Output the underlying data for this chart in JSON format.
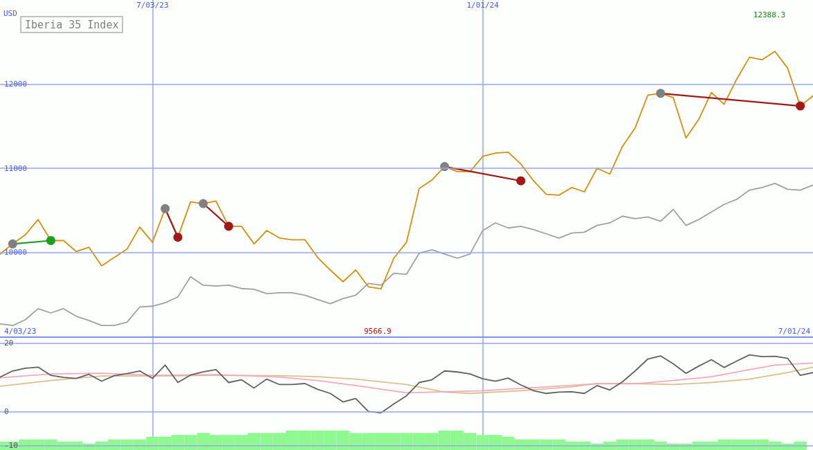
{
  "chart_data": [
    {
      "type": "line",
      "title": "Iberia 35 Index",
      "ylabel": "USD",
      "x": [
        "2023-04-10",
        "2023-04-17",
        "2023-04-24",
        "2023-05-01",
        "2023-05-08",
        "2023-05-15",
        "2023-05-22",
        "2023-05-29",
        "2023-06-05",
        "2023-06-12",
        "2023-06-19",
        "2023-06-26",
        "2023-07-03",
        "2023-07-10",
        "2023-07-17",
        "2023-07-24",
        "2023-07-31",
        "2023-08-07",
        "2023-08-14",
        "2023-08-21",
        "2023-08-28",
        "2023-09-04",
        "2023-09-11",
        "2023-09-18",
        "2023-09-25",
        "2023-10-02",
        "2023-10-09",
        "2023-10-16",
        "2023-10-23",
        "2023-10-30",
        "2023-11-06",
        "2023-11-13",
        "2023-11-20",
        "2023-11-27",
        "2023-12-04",
        "2023-12-11",
        "2023-12-18",
        "2023-12-25",
        "2024-01-01",
        "2024-01-08",
        "2024-01-15",
        "2024-01-22",
        "2024-01-29",
        "2024-02-05",
        "2024-02-12",
        "2024-02-19",
        "2024-02-26",
        "2024-03-04",
        "2024-03-11",
        "2024-03-18",
        "2024-03-25",
        "2024-04-01",
        "2024-04-08",
        "2024-04-15",
        "2024-04-22",
        "2024-04-29",
        "2024-05-06",
        "2024-05-13",
        "2024-05-20",
        "2024-05-27",
        "2024-06-03",
        "2024-06-10",
        "2024-06-17",
        "2024-06-24",
        "2024-07-01"
      ],
      "series": [
        {
          "color": "#d4900a",
          "values": [
            9980,
            10100,
            10210,
            10390,
            10140,
            10140,
            10010,
            10060,
            9840,
            9940,
            10040,
            10300,
            10120,
            10520,
            10180,
            10600,
            10580,
            10610,
            10310,
            10310,
            10100,
            10260,
            10170,
            10150,
            10150,
            9940,
            9790,
            9650,
            9790,
            9590,
            9566.9,
            9930,
            10120,
            10760,
            10860,
            11020,
            10960,
            10960,
            11140,
            11180,
            11190,
            11050,
            10850,
            10690,
            10680,
            10770,
            10720,
            11000,
            10930,
            11260,
            11480,
            11870,
            11890,
            11840,
            11360,
            11580,
            11900,
            11760,
            12060,
            12320,
            12290,
            12388.3,
            12190,
            11740,
            11860
          ]
        },
        {
          "color": "#a0a0a0",
          "values": [
            9150,
            9130,
            9200,
            9330,
            9280,
            9330,
            9240,
            9190,
            9130,
            9130,
            9170,
            9350,
            9360,
            9400,
            9470,
            9710,
            9610,
            9600,
            9610,
            9570,
            9560,
            9510,
            9520,
            9520,
            9490,
            9440,
            9390,
            9450,
            9490,
            9630,
            9610,
            9750,
            9740,
            9990,
            10030,
            9980,
            9930,
            9980,
            10260,
            10350,
            10290,
            10310,
            10270,
            10220,
            10170,
            10230,
            10240,
            10320,
            10350,
            10430,
            10400,
            10420,
            10370,
            10510,
            10320,
            10390,
            10480,
            10570,
            10630,
            10740,
            10770,
            10820,
            10750,
            10740,
            10800
          ]
        },
        {
          "color": "#1e9e1e",
          "marker": "circle",
          "x": [
            "2023-04-17",
            "2023-05-08"
          ],
          "values": [
            10100,
            10140
          ],
          "colors": [
            "#808080",
            "#1e9e1e"
          ]
        },
        {
          "color": "#a01818",
          "marker": "circle",
          "x": [
            "2023-07-10",
            "2023-07-17"
          ],
          "values": [
            10520,
            10180
          ],
          "colors": [
            "#808080",
            "#a01818"
          ]
        },
        {
          "color": "#a01818",
          "marker": "circle",
          "x": [
            "2023-07-31",
            "2023-08-14"
          ],
          "values": [
            10580,
            10310
          ],
          "colors": [
            "#808080",
            "#a01818"
          ]
        },
        {
          "color": "#a01818",
          "marker": "circle",
          "x": [
            "2023-12-11",
            "2024-01-22"
          ],
          "values": [
            11020,
            10850
          ],
          "colors": [
            "#808080",
            "#a01818"
          ]
        },
        {
          "color": "#a01818",
          "marker": "circle",
          "x": [
            "2024-04-08",
            "2024-06-24"
          ],
          "values": [
            11890,
            11740
          ],
          "colors": [
            "#808080",
            "#a01818"
          ]
        }
      ],
      "xlim": [
        "2023-04-10",
        "2024-07-01"
      ],
      "xticks": [
        {
          "value": "2023-07-03",
          "label": "7/03/23"
        },
        {
          "value": "2024-01-01",
          "label": "1/01/24"
        }
      ],
      "ylim": [
        9000,
        13000
      ],
      "yticks": [
        10000,
        11000,
        12000
      ],
      "grid": true,
      "marker": "none",
      "annotations": [
        "12388.3",
        "9566.9",
        "4/03/23",
        "7/01/24"
      ]
    },
    {
      "type": "line",
      "x": [
        "2023-04-10",
        "2023-04-17",
        "2023-04-24",
        "2023-05-01",
        "2023-05-08",
        "2023-05-15",
        "2023-05-22",
        "2023-05-29",
        "2023-06-05",
        "2023-06-12",
        "2023-06-19",
        "2023-06-26",
        "2023-07-03",
        "2023-07-10",
        "2023-07-17",
        "2023-07-24",
        "2023-07-31",
        "2023-08-07",
        "2023-08-14",
        "2023-08-21",
        "2023-08-28",
        "2023-09-04",
        "2023-09-11",
        "2023-09-18",
        "2023-09-25",
        "2023-10-02",
        "2023-10-09",
        "2023-10-16",
        "2023-10-23",
        "2023-10-30",
        "2023-11-06",
        "2023-11-13",
        "2023-11-20",
        "2023-11-27",
        "2023-12-04",
        "2023-12-11",
        "2023-12-18",
        "2023-12-25",
        "2024-01-01",
        "2024-01-08",
        "2024-01-15",
        "2024-01-22",
        "2024-01-29",
        "2024-02-05",
        "2024-02-12",
        "2024-02-19",
        "2024-02-26",
        "2024-03-04",
        "2024-03-11",
        "2024-03-18",
        "2024-03-25",
        "2024-04-01",
        "2024-04-08",
        "2024-04-15",
        "2024-04-22",
        "2024-04-29",
        "2024-05-06",
        "2024-05-13",
        "2024-05-20",
        "2024-05-27",
        "2024-06-03",
        "2024-06-10",
        "2024-06-17",
        "2024-06-24",
        "2024-07-01"
      ],
      "series": [
        {
          "type": "bar",
          "color": "#90f890",
          "x": [
            "2023-04-10",
            "2023-04-17",
            "2023-04-24",
            "2023-05-01",
            "2023-05-08",
            "2023-05-15",
            "2023-05-22",
            "2023-05-29",
            "2023-06-05",
            "2023-06-12",
            "2023-06-19",
            "2023-06-26",
            "2023-07-03",
            "2023-07-10",
            "2023-07-17",
            "2023-07-24",
            "2023-07-31",
            "2023-08-07",
            "2023-08-14",
            "2023-08-21",
            "2023-08-28",
            "2023-09-04",
            "2023-09-11",
            "2023-09-18",
            "2023-09-25",
            "2023-10-02",
            "2023-10-09",
            "2023-10-16",
            "2023-10-23",
            "2023-10-30",
            "2023-11-06",
            "2023-11-13",
            "2023-11-20",
            "2023-11-27",
            "2023-12-04",
            "2023-12-11",
            "2023-12-18",
            "2023-12-25",
            "2024-01-01",
            "2024-01-08",
            "2024-01-15",
            "2024-01-22",
            "2024-01-29",
            "2024-02-05",
            "2024-02-12",
            "2024-02-19",
            "2024-02-26",
            "2024-03-04",
            "2024-03-11",
            "2024-03-18",
            "2024-03-25",
            "2024-04-01",
            "2024-04-08",
            "2024-04-15",
            "2024-04-22",
            "2024-04-29",
            "2024-05-06",
            "2024-05-13",
            "2024-05-20",
            "2024-05-27",
            "2024-06-03",
            "2024-06-10",
            "2024-06-17",
            "2024-06-24"
          ],
          "values": [
            2.5,
            2.5,
            3.1,
            3.1,
            3.1,
            2.5,
            2.5,
            1.9,
            2.5,
            3.1,
            3.1,
            3.1,
            3.9,
            3.9,
            4.4,
            4.4,
            5.0,
            4.4,
            4.4,
            4.4,
            5.0,
            5.0,
            5.0,
            5.7,
            5.7,
            5.7,
            5.7,
            5.7,
            5.0,
            5.0,
            5.0,
            5.0,
            5.0,
            5.0,
            5.0,
            5.7,
            5.7,
            5.0,
            4.4,
            4.4,
            3.9,
            3.1,
            3.1,
            3.1,
            3.1,
            2.5,
            2.5,
            1.9,
            2.5,
            3.1,
            3.1,
            3.1,
            2.5,
            1.9,
            1.9,
            2.5,
            2.5,
            3.1,
            3.1,
            3.1,
            3.1,
            2.5,
            1.9,
            2.5
          ],
          "base": [
            -11.3,
            -11.3,
            -11.3,
            -11.3,
            -11.3,
            -11.3,
            -11.3,
            -11.3,
            -11.3,
            -11.3,
            -11.3,
            -11.3,
            -11.3,
            -11.3,
            -11.3,
            -11.3,
            -11.3,
            -11.3,
            -11.3,
            -11.3,
            -11.3,
            -11.3,
            -11.3,
            -11.3,
            -11.3,
            -11.3,
            -11.3,
            -11.3,
            -11.3,
            -11.3,
            -11.3,
            -11.3,
            -11.3,
            -11.3,
            -11.3,
            -11.3,
            -11.3,
            -11.3,
            -11.3,
            -11.3,
            -11.3,
            -11.3,
            -11.3,
            -11.3,
            -11.3,
            -11.3,
            -11.3,
            -11.3,
            -11.3,
            -11.3,
            -11.3,
            -11.3,
            -11.3,
            -11.3,
            -11.3,
            -11.3,
            -11.3,
            -11.3,
            -11.3,
            -11.3,
            -11.3,
            -11.3,
            -11.3,
            -11.3
          ]
        },
        {
          "color": "#d8c090",
          "x": [
            "2023-04-10",
            "2023-05-08",
            "2023-06-05",
            "2023-07-03",
            "2023-08-07",
            "2023-09-11",
            "2023-10-02",
            "2023-10-23",
            "2023-11-20",
            "2023-12-11",
            "2023-12-25",
            "2024-01-22",
            "2024-02-19",
            "2024-03-04",
            "2024-03-25",
            "2024-04-15",
            "2024-05-06",
            "2024-05-27",
            "2024-06-17",
            "2024-07-01"
          ],
          "values": [
            7.4,
            9.1,
            10.4,
            10.4,
            10.6,
            10.5,
            10.2,
            9.5,
            7.9,
            5.7,
            5.3,
            6.1,
            7.2,
            8.2,
            8.2,
            7.9,
            8.5,
            9.5,
            11.4,
            13.0
          ]
        },
        {
          "color": "#f4a8c0",
          "x": [
            "2023-04-10",
            "2023-05-08",
            "2023-06-05",
            "2023-07-03",
            "2023-08-07",
            "2023-09-11",
            "2023-10-02",
            "2023-10-23",
            "2023-11-20",
            "2024-01-01",
            "2024-02-05",
            "2024-03-04",
            "2024-03-25",
            "2024-04-15",
            "2024-05-06",
            "2024-05-27",
            "2024-06-10",
            "2024-07-01"
          ],
          "values": [
            9.9,
            11.0,
            11.2,
            10.6,
            10.8,
            10.1,
            9.1,
            7.6,
            5.5,
            6.1,
            7.2,
            8.1,
            8.1,
            9.1,
            10.2,
            12.3,
            13.6,
            14.2
          ]
        },
        {
          "color": "#606060",
          "values": [
            10.1,
            11.9,
            12.7,
            13.0,
            10.6,
            10.0,
            9.7,
            10.9,
            8.9,
            10.5,
            11.1,
            11.9,
            9.7,
            13.6,
            8.5,
            10.7,
            11.6,
            12.3,
            8.5,
            9.3,
            6.9,
            9.5,
            7.9,
            7.9,
            8.2,
            6.5,
            5.3,
            2.8,
            3.8,
            0.0,
            -0.4,
            2.2,
            4.6,
            8.5,
            9.3,
            11.9,
            11.6,
            11.0,
            9.6,
            8.9,
            9.8,
            7.8,
            6.1,
            5.3,
            5.7,
            5.8,
            5.3,
            7.6,
            6.3,
            8.7,
            11.9,
            15.4,
            16.3,
            14.0,
            11.2,
            13.3,
            15.2,
            12.9,
            14.8,
            16.6,
            16.1,
            16.2,
            15.6,
            10.6,
            11.4
          ]
        }
      ],
      "xlim": [
        "2023-04-10",
        "2024-07-01"
      ],
      "xticks": [
        {
          "value": "2023-07-03",
          "label": null
        },
        {
          "value": "2024-01-01",
          "label": null
        }
      ],
      "ylim": [
        -11.3,
        21.6
      ],
      "yticks": [
        -10,
        0,
        20
      ],
      "grid": true,
      "marker": "none",
      "tick_labels": "y"
    }
  ]
}
